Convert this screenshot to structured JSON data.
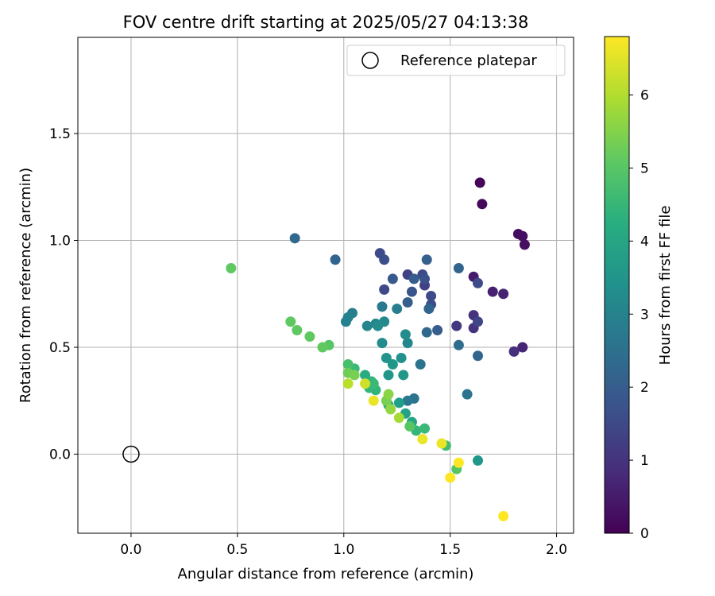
{
  "chart_data": {
    "type": "scatter",
    "title": "FOV centre drift starting at 2025/05/27 04:13:38",
    "xlabel": "Angular distance from reference (arcmin)",
    "ylabel": "Rotation from reference (arcmin)",
    "xlim": [
      -0.25,
      2.08
    ],
    "ylim": [
      -0.37,
      1.95
    ],
    "xticks": [
      "0.0",
      "0.5",
      "1.0",
      "1.5",
      "2.0"
    ],
    "yticks": [
      "0.0",
      "0.5",
      "1.0",
      "1.5"
    ],
    "grid": true,
    "legend": {
      "position": "top-right",
      "entries": [
        "Reference platepar"
      ]
    },
    "reference_point": {
      "name": "Reference platepar",
      "x": 0.0,
      "y": 0.0
    },
    "colorbar": {
      "label": "Hours from first FF file",
      "range": [
        0,
        6.8
      ],
      "ticks": [
        "0",
        "1",
        "2",
        "3",
        "4",
        "5",
        "6"
      ],
      "colormap": "viridis"
    },
    "series": [
      {
        "points": [
          [
            1.64,
            1.27,
            0.1
          ],
          [
            1.65,
            1.17,
            0.15
          ],
          [
            1.82,
            1.03,
            0.2
          ],
          [
            1.84,
            1.02,
            0.25
          ],
          [
            1.85,
            0.98,
            0.3
          ],
          [
            1.61,
            0.83,
            0.5
          ],
          [
            1.7,
            0.76,
            0.6
          ],
          [
            1.75,
            0.75,
            0.65
          ],
          [
            1.84,
            0.5,
            0.7
          ],
          [
            1.8,
            0.48,
            0.9
          ],
          [
            1.61,
            0.65,
            1.0
          ],
          [
            1.53,
            0.6,
            1.1
          ],
          [
            1.61,
            0.59,
            1.0
          ],
          [
            1.63,
            0.62,
            1.4
          ],
          [
            1.63,
            0.8,
            1.5
          ],
          [
            1.3,
            0.84,
            1.3
          ],
          [
            1.37,
            0.84,
            1.5
          ],
          [
            1.38,
            0.82,
            1.7
          ],
          [
            1.38,
            0.79,
            1.3
          ],
          [
            1.19,
            0.77,
            1.5
          ],
          [
            1.17,
            0.94,
            1.5
          ],
          [
            1.19,
            0.91,
            1.6
          ],
          [
            1.41,
            0.74,
            1.5
          ],
          [
            1.41,
            0.7,
            1.6
          ],
          [
            1.4,
            0.68,
            2.2
          ],
          [
            1.32,
            0.76,
            1.8
          ],
          [
            1.23,
            0.82,
            1.9
          ],
          [
            1.33,
            0.82,
            2.0
          ],
          [
            1.3,
            0.71,
            2.0
          ],
          [
            1.39,
            0.91,
            2.1
          ],
          [
            0.96,
            0.91,
            2.2
          ],
          [
            0.77,
            1.01,
            2.3
          ],
          [
            1.54,
            0.87,
            2.2
          ],
          [
            1.44,
            0.58,
            2.0
          ],
          [
            1.39,
            0.57,
            2.3
          ],
          [
            1.54,
            0.51,
            2.4
          ],
          [
            1.63,
            0.46,
            2.2
          ],
          [
            1.36,
            0.42,
            2.6
          ],
          [
            1.58,
            0.28,
            2.6
          ],
          [
            1.33,
            0.26,
            2.6
          ],
          [
            1.3,
            0.25,
            2.7
          ],
          [
            1.18,
            0.69,
            2.8
          ],
          [
            1.25,
            0.68,
            2.9
          ],
          [
            1.04,
            0.66,
            2.9
          ],
          [
            1.02,
            0.64,
            3.0
          ],
          [
            1.01,
            0.62,
            3.0
          ],
          [
            1.11,
            0.6,
            3.1
          ],
          [
            1.15,
            0.61,
            3.1
          ],
          [
            1.19,
            0.62,
            3.2
          ],
          [
            1.16,
            0.6,
            3.3
          ],
          [
            1.18,
            0.52,
            3.3
          ],
          [
            1.3,
            0.52,
            3.1
          ],
          [
            1.29,
            0.56,
            3.3
          ],
          [
            1.27,
            0.45,
            3.4
          ],
          [
            1.2,
            0.45,
            3.5
          ],
          [
            1.23,
            0.42,
            3.6
          ],
          [
            1.21,
            0.37,
            3.6
          ],
          [
            1.28,
            0.37,
            3.6
          ],
          [
            1.63,
            -0.03,
            3.6
          ],
          [
            1.26,
            0.24,
            3.8
          ],
          [
            1.29,
            0.19,
            3.9
          ],
          [
            1.32,
            0.15,
            4.0
          ],
          [
            1.21,
            0.23,
            4.2
          ],
          [
            1.1,
            0.37,
            4.2
          ],
          [
            1.13,
            0.34,
            4.4
          ],
          [
            1.15,
            0.3,
            4.4
          ],
          [
            1.12,
            0.31,
            4.5
          ],
          [
            1.14,
            0.33,
            4.6
          ],
          [
            1.05,
            0.4,
            4.6
          ],
          [
            1.02,
            0.42,
            4.8
          ],
          [
            1.34,
            0.11,
            4.5
          ],
          [
            1.38,
            0.12,
            4.6
          ],
          [
            1.48,
            0.04,
            4.7
          ],
          [
            1.53,
            -0.07,
            5.0
          ],
          [
            1.31,
            0.13,
            5.0
          ],
          [
            0.93,
            0.51,
            5.0
          ],
          [
            0.9,
            0.5,
            5.1
          ],
          [
            0.84,
            0.55,
            5.1
          ],
          [
            0.78,
            0.58,
            5.1
          ],
          [
            0.75,
            0.62,
            5.1
          ],
          [
            0.47,
            0.87,
            5.1
          ],
          [
            1.02,
            0.38,
            5.3
          ],
          [
            1.05,
            0.37,
            5.4
          ],
          [
            1.2,
            0.25,
            5.4
          ],
          [
            1.21,
            0.28,
            5.6
          ],
          [
            1.22,
            0.21,
            5.7
          ],
          [
            1.26,
            0.17,
            5.9
          ],
          [
            1.02,
            0.33,
            6.1
          ],
          [
            1.1,
            0.33,
            6.3
          ],
          [
            1.14,
            0.25,
            6.6
          ],
          [
            1.37,
            0.07,
            6.6
          ],
          [
            1.46,
            0.05,
            6.6
          ],
          [
            1.54,
            -0.04,
            6.8
          ],
          [
            1.5,
            -0.11,
            6.8
          ],
          [
            1.75,
            -0.29,
            6.8
          ]
        ]
      }
    ]
  }
}
